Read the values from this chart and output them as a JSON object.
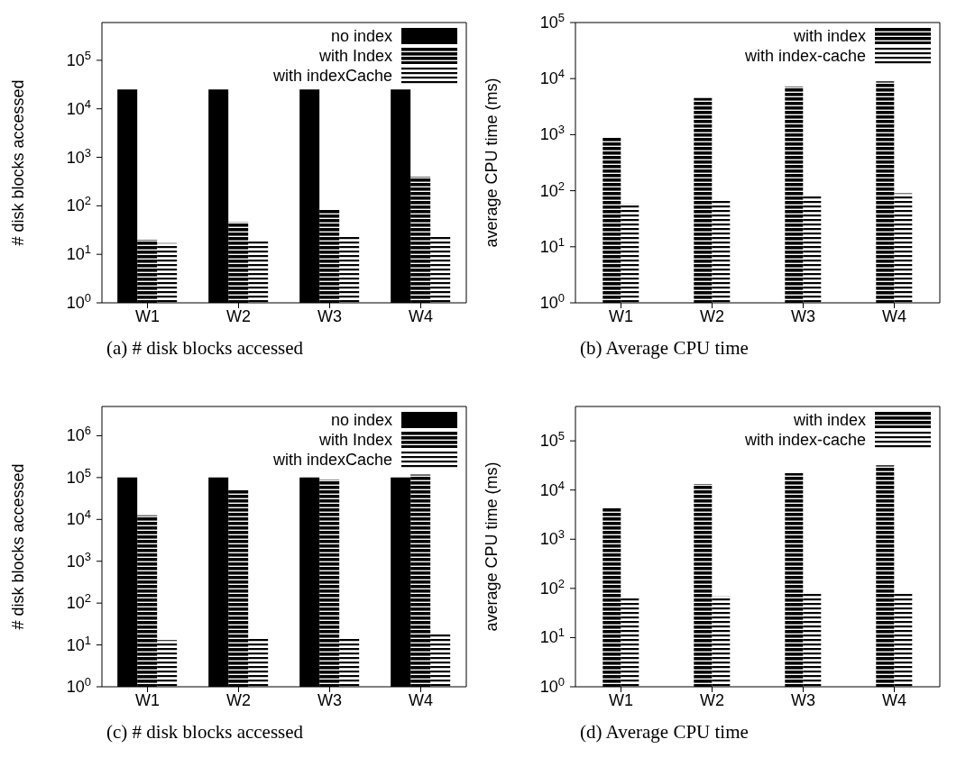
{
  "chart_data": [
    {
      "type": "bar",
      "title": "(a) # disk blocks accessed",
      "ylabel": "# disk blocks accessed",
      "categories": [
        "W1",
        "W2",
        "W3",
        "W4"
      ],
      "log": true,
      "legend": "top right",
      "grid": false,
      "ylim": [
        1,
        600000
      ],
      "yticks": [
        {
          "value": 1,
          "label": "10$^{0}$"
        },
        {
          "value": 10,
          "label": "10$^{1}$"
        },
        {
          "value": 100,
          "label": "10$^{2}$"
        },
        {
          "value": 1000,
          "label": "10$^{3}$"
        },
        {
          "value": 10000,
          "label": "10$^{4}$"
        },
        {
          "value": 100000,
          "label": "10$^{5}$"
        }
      ],
      "series": [
        {
          "name": "no index",
          "color": "#000000",
          "values": [
            25000,
            25000,
            25000,
            25000
          ]
        },
        {
          "name": "with Index",
          "color": "#000000",
          "values": [
            20,
            46,
            85,
            400
          ]
        },
        {
          "name": "with indexCache",
          "color": "#000000",
          "values": [
            17,
            20,
            23,
            23
          ]
        }
      ]
    },
    {
      "type": "bar",
      "title": "(b) Average CPU time",
      "ylabel": "average CPU time (ms)",
      "categories": [
        "W1",
        "W2",
        "W3",
        "W4"
      ],
      "log": true,
      "legend": "top right",
      "grid": false,
      "ylim": [
        1,
        100000
      ],
      "yticks": [
        {
          "value": 1,
          "label": "10$^{0}$"
        },
        {
          "value": 10,
          "label": "10$^{1}$"
        },
        {
          "value": 100,
          "label": "10$^{2}$"
        },
        {
          "value": 1000,
          "label": "10$^{3}$"
        },
        {
          "value": 10000,
          "label": "10$^{4}$"
        },
        {
          "value": 100000,
          "label": "10$^{5}$"
        }
      ],
      "series": [
        {
          "name": "with index",
          "color": "#000000",
          "values": [
            900,
            4500,
            7200,
            8900
          ]
        },
        {
          "name": "with index-cache",
          "color": "#000000",
          "values": [
            59,
            69,
            79,
            90
          ]
        }
      ]
    },
    {
      "type": "bar",
      "title": "(c) # disk blocks accessed",
      "ylabel": "# disk blocks accessed",
      "categories": [
        "W1",
        "W2",
        "W3",
        "W4"
      ],
      "log": true,
      "legend": "top right",
      "grid": false,
      "ylim": [
        1,
        5000000
      ],
      "yticks": [
        {
          "value": 1,
          "label": "10$^{0}$"
        },
        {
          "value": 10,
          "label": "10$^{1}$"
        },
        {
          "value": 100,
          "label": "10$^{2}$"
        },
        {
          "value": 1000,
          "label": "10$^{3}$"
        },
        {
          "value": 10000,
          "label": "10$^{4}$"
        },
        {
          "value": 100000,
          "label": "10$^{5}$"
        },
        {
          "value": 1000000,
          "label": "10$^{6}$"
        }
      ],
      "series": [
        {
          "name": "no index",
          "color": "#000000",
          "values": [
            100000,
            100000,
            100000,
            100000
          ]
        },
        {
          "name": "with Index",
          "color": "#000000",
          "values": [
            12600,
            50000,
            89000,
            118000
          ]
        },
        {
          "name": "with indexCache",
          "color": "#000000",
          "values": [
            13,
            15,
            15,
            18
          ]
        }
      ]
    },
    {
      "type": "bar",
      "title": "(d) Average CPU time",
      "ylabel": "average CPU time (ms)",
      "categories": [
        "W1",
        "W2",
        "W3",
        "W4"
      ],
      "log": true,
      "legend": "top right",
      "grid": false,
      "ylim": [
        1,
        500000
      ],
      "yticks": [
        {
          "value": 1,
          "label": "10$^{0}$"
        },
        {
          "value": 10,
          "label": "10$^{1}$"
        },
        {
          "value": 100,
          "label": "10$^{2}$"
        },
        {
          "value": 1000,
          "label": "10$^{3}$"
        },
        {
          "value": 10000,
          "label": "10$^{4}$"
        },
        {
          "value": 100000,
          "label": "10$^{5}$"
        }
      ],
      "series": [
        {
          "name": "with index",
          "color": "#000000",
          "values": [
            4400,
            13300,
            22000,
            32000
          ]
        },
        {
          "name": "with index-cache",
          "color": "#000000",
          "values": [
            65,
            70,
            83,
            83
          ]
        }
      ]
    }
  ]
}
